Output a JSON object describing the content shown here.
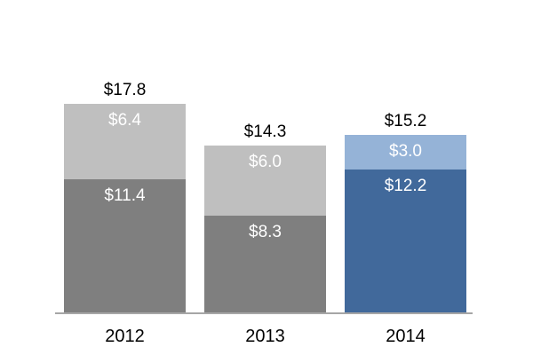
{
  "chart_data": {
    "type": "bar",
    "stacked": true,
    "title": "",
    "categories": [
      "2012",
      "2013",
      "2014"
    ],
    "series": [
      {
        "name": "bottom-segment",
        "values": [
          11.4,
          8.3,
          12.2
        ]
      },
      {
        "name": "top-segment",
        "values": [
          6.4,
          6.0,
          3.0
        ]
      }
    ],
    "totals": [
      17.8,
      14.3,
      15.2
    ],
    "value_format": "$#.#",
    "legend": false,
    "gridlines": false,
    "background": "#FFFFFF",
    "axis": {
      "baseline_color": "#A6A6A6"
    },
    "bars": [
      {
        "category": "2012",
        "total_label": "$17.8",
        "segments": [
          {
            "value": 11.4,
            "label": "$11.4",
            "color": "#7F7F7F",
            "label_color": "#FFFFFF"
          },
          {
            "value": 6.4,
            "label": "$6.4",
            "color": "#BFBFBF",
            "label_color": "#FFFFFF"
          }
        ]
      },
      {
        "category": "2013",
        "total_label": "$14.3",
        "segments": [
          {
            "value": 8.3,
            "label": "$8.3",
            "color": "#7F7F7F",
            "label_color": "#FFFFFF"
          },
          {
            "value": 6.0,
            "label": "$6.0",
            "color": "#BFBFBF",
            "label_color": "#FFFFFF"
          }
        ]
      },
      {
        "category": "2014",
        "total_label": "$15.2",
        "segments": [
          {
            "value": 12.2,
            "label": "$12.2",
            "color": "#41699B",
            "label_color": "#FFFFFF"
          },
          {
            "value": 3.0,
            "label": "$3.0",
            "color": "#95B3D7",
            "label_color": "#FFFFFF"
          }
        ]
      }
    ]
  }
}
